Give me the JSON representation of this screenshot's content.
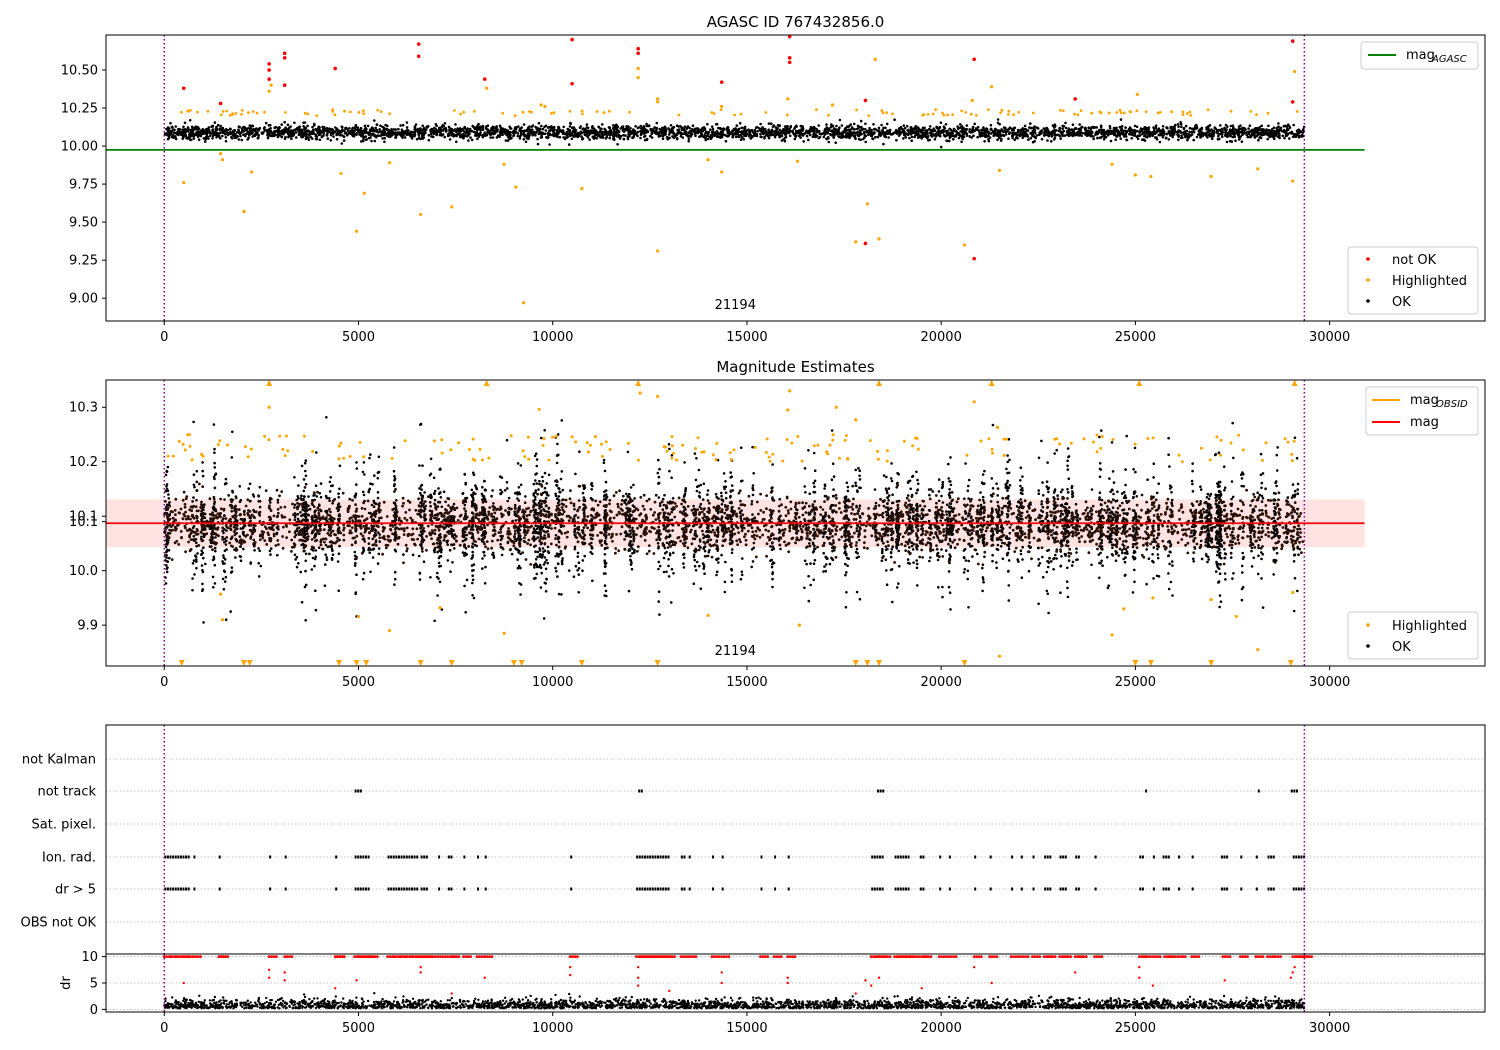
{
  "colors": {
    "ok": "#000000",
    "highlighted": "#ffa500",
    "not_ok": "#ff0000",
    "agasc_line": "#008000",
    "mag_line": "#ff0000",
    "mag_obsid_line": "#ffa500",
    "mag_band": "#ffcccc",
    "vline": "#800080",
    "grid": "#b0b0b0"
  },
  "chart_data": [
    {
      "type": "scatter",
      "title": "AGASC ID 767432856.0",
      "xlim": [
        -1500,
        34000
      ],
      "ylim": [
        8.85,
        10.73
      ],
      "xticks": [
        "0",
        "5000",
        "10000",
        "15000",
        "20000",
        "25000",
        "30000"
      ],
      "xtick_values": [
        0,
        5000,
        10000,
        15000,
        20000,
        25000,
        30000
      ],
      "yticks": [
        "9.00",
        "9.25",
        "9.50",
        "9.75",
        "10.00",
        "10.25",
        "10.50"
      ],
      "ytick_values": [
        9.0,
        9.25,
        9.5,
        9.75,
        10.0,
        10.25,
        10.5
      ],
      "annotation": {
        "text": "21194",
        "x": 14700,
        "y": 8.93
      },
      "vlines": [
        0,
        29350
      ],
      "hline": {
        "label": "mag",
        "subscript": "AGASC",
        "y": 9.975,
        "x": [
          -1500,
          30900
        ]
      },
      "legend_lines": [
        {
          "label": "mag",
          "subscript": "AGASC"
        }
      ],
      "legend_points": [
        "not OK",
        "Highlighted",
        "OK"
      ],
      "ok_band": {
        "center": 10.09,
        "halfwidth": 0.075,
        "x": [
          0,
          29350
        ]
      },
      "highlighted_points": [
        [
          500,
          9.76
        ],
        [
          1450,
          9.95
        ],
        [
          1500,
          9.91
        ],
        [
          2050,
          9.57
        ],
        [
          2250,
          9.83
        ],
        [
          4550,
          9.82
        ],
        [
          4950,
          9.44
        ],
        [
          5150,
          9.69
        ],
        [
          5800,
          9.89
        ],
        [
          6600,
          9.55
        ],
        [
          7400,
          9.6
        ],
        [
          8750,
          9.88
        ],
        [
          9050,
          9.73
        ],
        [
          9250,
          8.97
        ],
        [
          10750,
          9.72
        ],
        [
          12700,
          9.31
        ],
        [
          14000,
          9.91
        ],
        [
          14350,
          9.83
        ],
        [
          16300,
          9.9
        ],
        [
          17800,
          9.37
        ],
        [
          18100,
          9.62
        ],
        [
          18400,
          9.39
        ],
        [
          20600,
          9.35
        ],
        [
          21500,
          9.84
        ],
        [
          24400,
          9.88
        ],
        [
          25000,
          9.81
        ],
        [
          25400,
          9.8
        ],
        [
          26950,
          9.8
        ],
        [
          28150,
          9.85
        ],
        [
          29050,
          9.77
        ],
        [
          2700,
          10.36
        ],
        [
          2750,
          10.4
        ],
        [
          12200,
          10.45
        ],
        [
          12200,
          10.51
        ],
        [
          12700,
          10.31
        ],
        [
          12700,
          10.29
        ],
        [
          16050,
          10.31
        ],
        [
          18300,
          10.57
        ],
        [
          20800,
          10.3
        ],
        [
          21300,
          10.39
        ],
        [
          25050,
          10.34
        ],
        [
          29100,
          10.49
        ],
        [
          8300,
          10.38
        ],
        [
          9700,
          10.27
        ],
        [
          9800,
          10.26
        ],
        [
          14350,
          10.26
        ],
        [
          17200,
          10.27
        ]
      ],
      "not_ok_points": [
        [
          500,
          10.38
        ],
        [
          1450,
          10.28
        ],
        [
          2700,
          10.54
        ],
        [
          2700,
          10.5
        ],
        [
          2700,
          10.44
        ],
        [
          3100,
          10.61
        ],
        [
          3100,
          10.58
        ],
        [
          3100,
          10.4
        ],
        [
          4400,
          10.51
        ],
        [
          6550,
          10.67
        ],
        [
          6550,
          10.59
        ],
        [
          8250,
          10.44
        ],
        [
          10500,
          10.7
        ],
        [
          10500,
          10.41
        ],
        [
          12200,
          10.64
        ],
        [
          12200,
          10.61
        ],
        [
          14350,
          10.42
        ],
        [
          16100,
          10.72
        ],
        [
          16100,
          10.58
        ],
        [
          16100,
          10.55
        ],
        [
          18050,
          10.3
        ],
        [
          18050,
          9.36
        ],
        [
          20850,
          10.57
        ],
        [
          20850,
          9.26
        ],
        [
          23450,
          10.31
        ],
        [
          29050,
          10.69
        ],
        [
          29050,
          10.29
        ]
      ]
    },
    {
      "type": "scatter",
      "title": "Magnitude Estimates",
      "xlim": [
        -1500,
        34000
      ],
      "ylim": [
        9.825,
        10.35
      ],
      "xticks": [
        "0",
        "5000",
        "10000",
        "15000",
        "20000",
        "25000",
        "30000"
      ],
      "xtick_values": [
        0,
        5000,
        10000,
        15000,
        20000,
        25000,
        30000
      ],
      "yticks": [
        "9.9",
        "10.0",
        "10.1",
        "10.1",
        "10.2",
        "10.3"
      ],
      "ytick_values": [
        9.9,
        10.0,
        10.09,
        10.1,
        10.2,
        10.3
      ],
      "annotation": {
        "text": "21194",
        "x": 14700,
        "y": 9.845
      },
      "vlines": [
        0,
        29350
      ],
      "hline": {
        "label": "mag",
        "y": 10.087,
        "x": [
          -1500,
          30900
        ]
      },
      "band": {
        "low": 10.043,
        "high": 10.131,
        "x": [
          -1500,
          30900
        ]
      },
      "legend_lines": [
        {
          "label": "mag",
          "subscript": "OBSID"
        },
        {
          "label": "mag",
          "subscript": ""
        }
      ],
      "legend_points": [
        "Highlighted",
        "OK"
      ],
      "highlighted_points": [
        [
          1450,
          9.957
        ],
        [
          1500,
          9.91
        ],
        [
          5000,
          9.916
        ],
        [
          5800,
          9.89
        ],
        [
          7100,
          9.932
        ],
        [
          8750,
          9.885
        ],
        [
          14000,
          9.918
        ],
        [
          16350,
          9.9
        ],
        [
          21500,
          9.843
        ],
        [
          24400,
          9.882
        ],
        [
          24700,
          9.93
        ],
        [
          25450,
          9.95
        ],
        [
          26950,
          9.947
        ],
        [
          27600,
          9.916
        ],
        [
          28150,
          9.855
        ],
        [
          29050,
          9.96
        ],
        [
          2700,
          10.3
        ],
        [
          9650,
          10.296
        ],
        [
          12250,
          10.326
        ],
        [
          16100,
          10.33
        ],
        [
          16050,
          10.295
        ],
        [
          17300,
          10.3
        ],
        [
          20850,
          10.31
        ],
        [
          21450,
          10.263
        ],
        [
          12700,
          10.32
        ],
        [
          17800,
          10.277
        ]
      ],
      "top_markers": [
        2700,
        8300,
        12200,
        18400,
        21300,
        25100,
        29100
      ],
      "bottom_markers": [
        450,
        2050,
        2200,
        4500,
        4950,
        5200,
        6600,
        7400,
        9000,
        9200,
        10750,
        12700,
        17800,
        18100,
        18400,
        20600,
        25000,
        25400,
        26950,
        29000
      ]
    },
    {
      "type": "scatter",
      "title": "",
      "xlim": [
        -1500,
        34000
      ],
      "categories": [
        "not Kalman",
        "not track",
        "Sat. pixel.",
        "Ion. rad.",
        "dr > 5",
        "OBS not OK"
      ],
      "flag_segments": {
        "not track": [
          [
            4900,
            5050
          ],
          [
            12200,
            12300
          ],
          [
            18350,
            18500
          ],
          [
            25250,
            25300
          ],
          [
            28150,
            28200
          ],
          [
            29000,
            29150
          ]
        ],
        "Ion. rad.": [
          [
            0,
            650
          ],
          [
            750,
            800
          ],
          [
            1400,
            1450
          ],
          [
            2700,
            2750
          ],
          [
            3100,
            3150
          ],
          [
            4400,
            4450
          ],
          [
            4900,
            5300
          ],
          [
            5750,
            6500
          ],
          [
            6600,
            6800
          ],
          [
            7050,
            7100
          ],
          [
            7300,
            7400
          ],
          [
            7700,
            7750
          ],
          [
            8050,
            8100
          ],
          [
            8250,
            8300
          ],
          [
            10450,
            10500
          ],
          [
            12150,
            13000
          ],
          [
            13300,
            13400
          ],
          [
            13500,
            13550
          ],
          [
            14100,
            14150
          ],
          [
            14350,
            14400
          ],
          [
            15350,
            15400
          ],
          [
            15700,
            15750
          ],
          [
            16050,
            16100
          ],
          [
            18200,
            18500
          ],
          [
            18800,
            19200
          ],
          [
            19450,
            19550
          ],
          [
            19950,
            20000
          ],
          [
            20200,
            20250
          ],
          [
            20850,
            20900
          ],
          [
            21250,
            21300
          ],
          [
            21800,
            21850
          ],
          [
            22050,
            22100
          ],
          [
            22350,
            22400
          ],
          [
            22650,
            22800
          ],
          [
            23050,
            23200
          ],
          [
            23450,
            23550
          ],
          [
            23950,
            24000
          ],
          [
            25100,
            25200
          ],
          [
            25450,
            25500
          ],
          [
            25700,
            25900
          ],
          [
            26100,
            26150
          ],
          [
            26450,
            26500
          ],
          [
            27200,
            27350
          ],
          [
            27700,
            27750
          ],
          [
            28100,
            28150
          ],
          [
            28400,
            28600
          ],
          [
            29050,
            29350
          ]
        ],
        "dr > 5": [
          [
            0,
            650
          ],
          [
            750,
            800
          ],
          [
            1400,
            1450
          ],
          [
            2700,
            2750
          ],
          [
            3100,
            3150
          ],
          [
            4400,
            4450
          ],
          [
            4900,
            5300
          ],
          [
            5750,
            6500
          ],
          [
            6600,
            6800
          ],
          [
            7050,
            7100
          ],
          [
            7300,
            7400
          ],
          [
            7700,
            7750
          ],
          [
            8050,
            8100
          ],
          [
            8250,
            8300
          ],
          [
            10450,
            10500
          ],
          [
            12150,
            13000
          ],
          [
            13300,
            13400
          ],
          [
            13500,
            13550
          ],
          [
            14100,
            14150
          ],
          [
            14350,
            14400
          ],
          [
            15350,
            15400
          ],
          [
            15700,
            15750
          ],
          [
            16050,
            16100
          ],
          [
            18200,
            18500
          ],
          [
            18800,
            19200
          ],
          [
            19450,
            19550
          ],
          [
            19950,
            20000
          ],
          [
            20200,
            20250
          ],
          [
            20850,
            20900
          ],
          [
            21250,
            21300
          ],
          [
            21800,
            21850
          ],
          [
            22050,
            22100
          ],
          [
            22350,
            22400
          ],
          [
            22650,
            22800
          ],
          [
            23050,
            23200
          ],
          [
            23450,
            23550
          ],
          [
            23950,
            24000
          ],
          [
            25100,
            25200
          ],
          [
            25450,
            25500
          ],
          [
            25700,
            25900
          ],
          [
            26100,
            26150
          ],
          [
            26450,
            26500
          ],
          [
            27200,
            27350
          ],
          [
            27700,
            27750
          ],
          [
            28100,
            28150
          ],
          [
            28400,
            28600
          ],
          [
            29050,
            29350
          ]
        ]
      },
      "vlines": [
        0,
        29350
      ]
    },
    {
      "type": "scatter",
      "title": "",
      "ylabel": "dr",
      "xlim": [
        -1500,
        34000
      ],
      "ylim": [
        -0.5,
        10.5
      ],
      "xticks": [
        "0",
        "5000",
        "10000",
        "15000",
        "20000",
        "25000",
        "30000"
      ],
      "xtick_values": [
        0,
        5000,
        10000,
        15000,
        20000,
        25000,
        30000
      ],
      "yticks": [
        "0",
        "5",
        "10"
      ],
      "ytick_values": [
        0,
        5,
        10
      ],
      "vlines": [
        0,
        29350
      ],
      "clip_level": 10,
      "red_clusters": [
        0,
        150,
        300,
        450,
        550,
        750,
        1400,
        1450,
        2700,
        3100,
        4400,
        4450,
        4900,
        5000,
        5100,
        5200,
        5300,
        5750,
        5900,
        6050,
        6200,
        6350,
        6500,
        6600,
        6700,
        6800,
        7050,
        7300,
        7400,
        7700,
        8050,
        8250,
        10450,
        12150,
        12250,
        12350,
        12450,
        12550,
        12650,
        12750,
        12850,
        12950,
        13300,
        13500,
        14100,
        14350,
        15350,
        15700,
        16050,
        18200,
        18300,
        18400,
        18500,
        18800,
        18900,
        19000,
        19100,
        19200,
        19450,
        19550,
        19950,
        20200,
        20850,
        21250,
        21800,
        22050,
        22350,
        22650,
        22750,
        23050,
        23150,
        23450,
        23550,
        23950,
        25100,
        25200,
        25450,
        25750,
        25850,
        26100,
        26450,
        27250,
        27700,
        28100,
        28400,
        28550,
        29050,
        29150,
        29250,
        29350
      ],
      "red_scatter": [
        [
          2700,
          6
        ],
        [
          2700,
          7.5
        ],
        [
          3100,
          5.5
        ],
        [
          3100,
          7
        ],
        [
          4400,
          4
        ],
        [
          4950,
          5.5
        ],
        [
          6600,
          7
        ],
        [
          6600,
          8
        ],
        [
          7400,
          3
        ],
        [
          8250,
          6
        ],
        [
          10450,
          6.5
        ],
        [
          10450,
          8
        ],
        [
          12200,
          6
        ],
        [
          12200,
          8
        ],
        [
          12200,
          4.5
        ],
        [
          13000,
          3.5
        ],
        [
          14350,
          5
        ],
        [
          14350,
          7
        ],
        [
          16050,
          5
        ],
        [
          16050,
          6
        ],
        [
          17800,
          3
        ],
        [
          18050,
          5.5
        ],
        [
          18200,
          4.5
        ],
        [
          18400,
          6
        ],
        [
          19500,
          4
        ],
        [
          20850,
          8
        ],
        [
          21300,
          5
        ],
        [
          23450,
          7
        ],
        [
          25100,
          6
        ],
        [
          25100,
          8
        ],
        [
          25450,
          4.5
        ],
        [
          27300,
          5.5
        ],
        [
          29000,
          6
        ],
        [
          29050,
          7
        ],
        [
          29100,
          8
        ],
        [
          500,
          5
        ]
      ]
    }
  ]
}
